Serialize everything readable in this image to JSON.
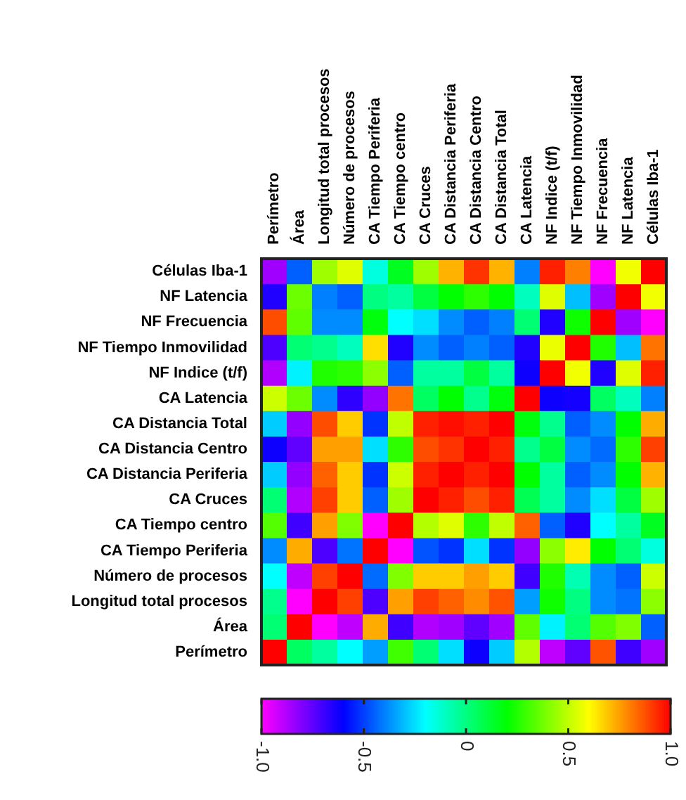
{
  "chart_data": {
    "type": "heatmap",
    "categories": [
      "Perímetro",
      "Área",
      "Longitud total procesos",
      "Número de procesos",
      "CA Tiempo Periferia",
      "CA Tiempo centro",
      "CA Cruces",
      "CA Distancia Periferia",
      "CA Distancia Centro",
      "CA Distancia Total",
      "CA Latencia",
      "NF Indice (t/f)",
      "NF Tiempo Inmovilidad",
      "NF Frecuencia",
      "NF Latencia",
      "Células Iba-1"
    ],
    "y_categories": [
      "Células Iba-1",
      "NF Latencia",
      "NF Frecuencia",
      "NF Tiempo Inmovilidad",
      "NF Indice (t/f)",
      "CA Latencia",
      "CA Distancia Total",
      "CA Distancia Centro",
      "CA Distancia Periferia",
      "CA Cruces",
      "CA Tiempo centro",
      "CA Tiempo Periferia",
      "Número de procesos",
      "Longitud total procesos",
      "Área",
      "Perímetro"
    ],
    "cells": [
      [
        -0.85,
        -0.45,
        0.45,
        0.55,
        -0.15,
        0.15,
        0.45,
        0.72,
        0.92,
        0.72,
        -0.4,
        0.95,
        0.8,
        -1,
        0.58,
        1
      ],
      [
        -0.65,
        0.37,
        -0.4,
        -0.45,
        0,
        -0.05,
        0.1,
        0.2,
        0.27,
        0.2,
        -0.1,
        0.55,
        -0.3,
        -0.85,
        1,
        0.58
      ],
      [
        0.88,
        0.35,
        -0.38,
        -0.38,
        0.18,
        -0.2,
        -0.25,
        -0.38,
        -0.45,
        -0.4,
        0.02,
        -0.65,
        0.22,
        1,
        -0.85,
        -1
      ],
      [
        -0.72,
        0.02,
        -0.02,
        -0.1,
        0.65,
        -0.65,
        -0.38,
        -0.45,
        -0.4,
        -0.45,
        -0.65,
        0.57,
        1,
        0.25,
        -0.3,
        0.82
      ],
      [
        -0.88,
        -0.22,
        0.25,
        0.27,
        0.42,
        -0.45,
        -0.05,
        -0.05,
        0.1,
        -0.05,
        -0.62,
        1,
        0.58,
        -0.65,
        0.55,
        0.95
      ],
      [
        0.52,
        0.37,
        -0.38,
        -0.67,
        -0.83,
        0.82,
        0.05,
        0.2,
        -0.02,
        0.18,
        1,
        -0.62,
        -0.63,
        0.05,
        -0.1,
        -0.4
      ],
      [
        -0.28,
        -0.83,
        0.88,
        0.68,
        -0.52,
        0.5,
        0.95,
        0.98,
        0.95,
        1,
        0.18,
        -0.02,
        -0.45,
        -0.38,
        0.2,
        0.73
      ],
      [
        -0.62,
        -0.75,
        0.75,
        0.75,
        -0.25,
        0.27,
        0.88,
        0.92,
        1,
        0.95,
        -0.02,
        0.1,
        -0.38,
        -0.43,
        0.27,
        0.9
      ],
      [
        -0.28,
        -0.83,
        0.85,
        0.68,
        -0.52,
        0.52,
        0.95,
        1,
        0.95,
        1,
        0.2,
        -0.05,
        -0.45,
        -0.38,
        0.2,
        0.72
      ],
      [
        0.02,
        -0.88,
        0.9,
        0.68,
        -0.45,
        0.45,
        1,
        0.95,
        0.88,
        0.95,
        0.07,
        -0.05,
        -0.38,
        -0.25,
        0.1,
        0.45
      ],
      [
        0.33,
        -0.7,
        0.75,
        0.4,
        -1,
        1,
        0.48,
        0.55,
        0.27,
        0.5,
        0.85,
        -0.45,
        -0.65,
        -0.2,
        -0.05,
        0.15
      ],
      [
        -0.38,
        0.73,
        -0.72,
        -0.42,
        1,
        -1,
        -0.47,
        -0.52,
        -0.25,
        -0.52,
        -0.83,
        0.42,
        0.63,
        0.2,
        0.02,
        -0.15
      ],
      [
        -0.2,
        -0.9,
        0.9,
        1,
        -0.43,
        0.4,
        0.68,
        0.68,
        0.75,
        0.68,
        -0.7,
        0.25,
        -0.08,
        -0.38,
        -0.45,
        0.52
      ],
      [
        -0.02,
        -1,
        1,
        0.9,
        -0.72,
        0.75,
        0.9,
        0.85,
        0.78,
        0.87,
        -0.35,
        0.22,
        0,
        -0.38,
        -0.42,
        0.42
      ],
      [
        0.02,
        1,
        -1,
        -0.9,
        0.73,
        -0.7,
        -0.88,
        -0.85,
        -0.75,
        -0.85,
        0.35,
        -0.22,
        0.02,
        0.33,
        0.4,
        -0.45
      ],
      [
        1,
        0.05,
        -0.05,
        -0.2,
        -0.35,
        0.3,
        0.02,
        -0.25,
        -0.62,
        -0.28,
        0.48,
        -0.9,
        -0.75,
        0.87,
        -0.7,
        -0.85
      ]
    ],
    "clim": [
      -1,
      1
    ],
    "cticks": [
      {
        "value": -1,
        "label": "-1.0"
      },
      {
        "value": -0.5,
        "label": "-0.5"
      },
      0,
      0.5,
      {
        "value": 1,
        "label": "1.0"
      }
    ]
  }
}
